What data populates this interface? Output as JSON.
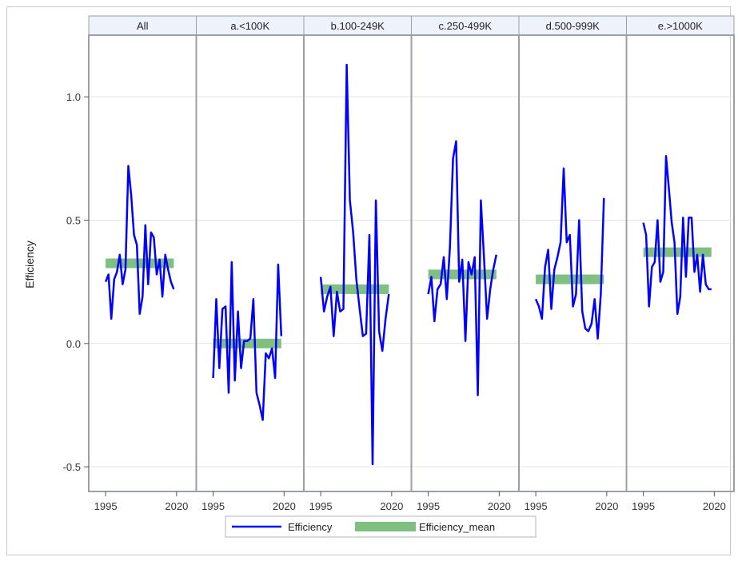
{
  "chart_data": {
    "type": "line",
    "ylabel": "Efficiency",
    "xlabel": "",
    "ylim": [
      -0.6,
      1.25
    ],
    "xlim": [
      1993,
      2023
    ],
    "x_ticks": [
      1995,
      2020
    ],
    "y_ticks": [
      -0.5,
      0.0,
      0.5,
      1.0
    ],
    "y_tick_labels": [
      "-0.5",
      "0.0",
      "0.5",
      "1.0"
    ],
    "grid": "horizontal",
    "legend_position": "bottom-center",
    "colors": {
      "efficiency": "#0000ff",
      "mean": "#7fbf7f",
      "header_bg": "#eef2fb"
    },
    "legend": [
      {
        "name": "Efficiency",
        "kind": "line"
      },
      {
        "name": "Efficiency_mean",
        "kind": "band"
      }
    ],
    "panels": [
      {
        "title": "All",
        "mean": 0.325,
        "x": [
          1995,
          1996,
          1997,
          1998,
          1999,
          2000,
          2001,
          2002,
          2003,
          2004,
          2005,
          2006,
          2007,
          2008,
          2009,
          2010,
          2011,
          2012,
          2013,
          2014,
          2015,
          2016,
          2017,
          2018,
          2019
        ],
        "y": [
          0.25,
          0.28,
          0.1,
          0.26,
          0.29,
          0.36,
          0.24,
          0.3,
          0.72,
          0.6,
          0.44,
          0.4,
          0.12,
          0.19,
          0.48,
          0.24,
          0.45,
          0.43,
          0.28,
          0.34,
          0.19,
          0.36,
          0.3,
          0.25,
          0.22
        ]
      },
      {
        "title": "a.<100K",
        "mean": 0.0,
        "x": [
          1995,
          1996,
          1997,
          1998,
          1999,
          2000,
          2001,
          2002,
          2003,
          2004,
          2005,
          2006,
          2007,
          2008,
          2009,
          2010,
          2011,
          2012,
          2013,
          2014,
          2015,
          2016,
          2017,
          2018,
          2019
        ],
        "y": [
          -0.14,
          0.18,
          -0.1,
          0.14,
          0.15,
          -0.2,
          0.33,
          -0.15,
          0.13,
          -0.1,
          0.01,
          0.01,
          0.02,
          0.18,
          -0.2,
          -0.25,
          -0.31,
          -0.04,
          -0.06,
          -0.02,
          -0.14,
          0.32,
          0.03,
          0.0,
          0.0
        ],
        "n": 23
      },
      {
        "title": "b.100-249K",
        "mean": 0.22,
        "x": [
          1995,
          1996,
          1997,
          1998,
          1999,
          2000,
          2001,
          2002,
          2003,
          2004,
          2005,
          2006,
          2007,
          2008,
          2009,
          2010,
          2011,
          2012,
          2013,
          2014,
          2015,
          2016,
          2017,
          2018,
          2019
        ],
        "y": [
          0.27,
          0.13,
          0.19,
          0.23,
          0.03,
          0.21,
          0.13,
          0.14,
          1.13,
          0.58,
          0.45,
          0.26,
          0.14,
          0.03,
          0.04,
          0.44,
          -0.49,
          0.58,
          0.05,
          -0.03,
          0.1,
          0.2,
          0.2,
          0.2,
          0.2
        ],
        "n": 22
      },
      {
        "title": "c.250-499K",
        "mean": 0.28,
        "x": [
          1995,
          1996,
          1997,
          1998,
          1999,
          2000,
          2001,
          2002,
          2003,
          2004,
          2005,
          2006,
          2007,
          2008,
          2009,
          2010,
          2011,
          2012,
          2013,
          2014,
          2015,
          2016,
          2017,
          2018,
          2019
        ],
        "y": [
          0.2,
          0.27,
          0.09,
          0.22,
          0.24,
          0.35,
          0.18,
          0.39,
          0.75,
          0.82,
          0.25,
          0.34,
          0.01,
          0.33,
          0.28,
          0.35,
          -0.21,
          0.58,
          0.35,
          0.1,
          0.22,
          0.3,
          0.36,
          0.36,
          0.36
        ],
        "n": 23
      },
      {
        "title": "d.500-999K",
        "mean": 0.26,
        "x": [
          1995,
          1996,
          1997,
          1998,
          1999,
          2000,
          2001,
          2002,
          2003,
          2004,
          2005,
          2006,
          2007,
          2008,
          2009,
          2010,
          2011,
          2012,
          2013,
          2014,
          2015,
          2016,
          2017,
          2018,
          2019
        ],
        "y": [
          0.18,
          0.15,
          0.1,
          0.31,
          0.38,
          0.14,
          0.3,
          0.35,
          0.41,
          0.71,
          0.41,
          0.44,
          0.15,
          0.2,
          0.5,
          0.13,
          0.06,
          0.05,
          0.08,
          0.18,
          0.02,
          0.2,
          0.59,
          0.22,
          0.22
        ],
        "n": 23
      },
      {
        "title": "e.>1000K",
        "mean": 0.37,
        "x": [
          1995,
          1996,
          1997,
          1998,
          1999,
          2000,
          2001,
          2002,
          2003,
          2004,
          2005,
          2006,
          2007,
          2008,
          2009,
          2010,
          2011,
          2012,
          2013,
          2014,
          2015,
          2016,
          2017,
          2018,
          2019
        ],
        "y": [
          0.49,
          0.44,
          0.15,
          0.31,
          0.33,
          0.5,
          0.25,
          0.29,
          0.76,
          0.63,
          0.49,
          0.41,
          0.12,
          0.19,
          0.51,
          0.27,
          0.51,
          0.51,
          0.29,
          0.36,
          0.21,
          0.36,
          0.24,
          0.22,
          0.22
        ],
        "n": 25
      }
    ]
  }
}
